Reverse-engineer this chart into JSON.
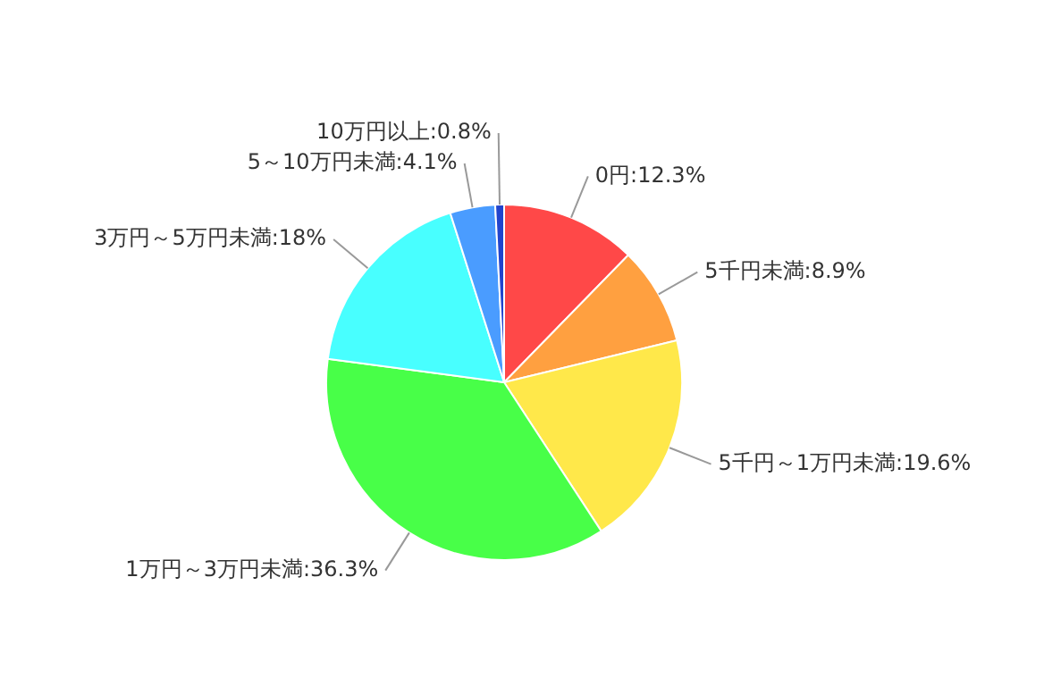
{
  "chart_data": {
    "type": "pie",
    "categories": [
      "0円",
      "5千円未満",
      "5千円～1万円未満",
      "1万円～3万円未満",
      "3万円～5万円未満",
      "5～10万円未満",
      "10万円以上"
    ],
    "values": [
      12.3,
      8.9,
      19.6,
      36.3,
      18,
      4.1,
      0.8
    ],
    "value_labels": [
      "12.3%",
      "8.9%",
      "19.6%",
      "36.3%",
      "18%",
      "4.1%",
      "0.8%"
    ],
    "colors": [
      "#ff4848",
      "#ffa040",
      "#ffe84a",
      "#48ff48",
      "#48ffff",
      "#4a9cff",
      "#2244cc"
    ],
    "legend": false
  }
}
